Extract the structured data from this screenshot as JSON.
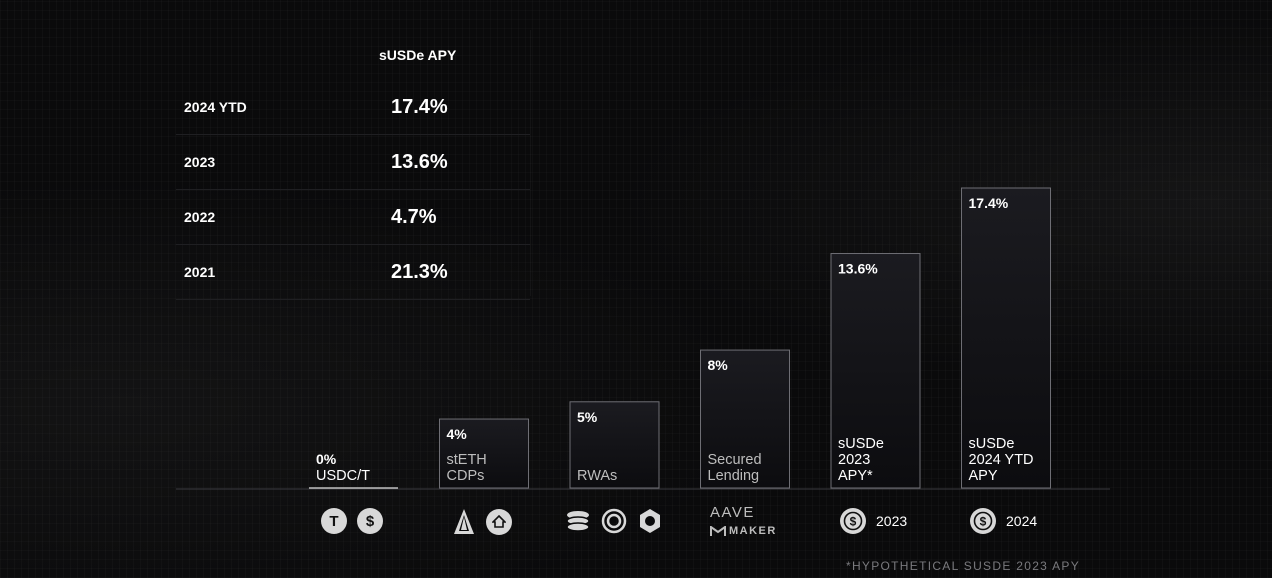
{
  "table": {
    "header": "sUSDe APY",
    "rows": [
      {
        "label": "2024 YTD",
        "value": "17.4%"
      },
      {
        "label": "2023",
        "value": "13.6%"
      },
      {
        "label": "2022",
        "value": "4.7%"
      },
      {
        "label": "2021",
        "value": "21.3%"
      }
    ]
  },
  "chart_data": {
    "type": "bar",
    "categories": [
      "USDC/T",
      "stETH CDPs",
      "RWAs",
      "Secured Lending",
      "sUSDe 2023 APY*",
      "sUSDe 2024 YTD APY"
    ],
    "category_lines": [
      [
        "USDC/T"
      ],
      [
        "stETH",
        "CDPs"
      ],
      [
        "RWAs"
      ],
      [
        "Secured",
        "Lending"
      ],
      [
        "sUSDe",
        "2023",
        "APY*"
      ],
      [
        "sUSDe",
        "2024 YTD",
        "APY"
      ]
    ],
    "values": [
      0,
      4,
      5,
      8,
      13.6,
      17.4
    ],
    "value_labels": [
      "0%",
      "4%",
      "5%",
      "8%",
      "13.6%",
      "17.4%"
    ],
    "highlight_labels": [
      true,
      false,
      false,
      false,
      true,
      true
    ],
    "ylim": [
      0,
      17.4
    ],
    "grid": false
  },
  "logos": {
    "year_2023": "2023",
    "year_2024": "2024",
    "aave": "AAVE",
    "maker": "MAKER"
  },
  "footnote": "*HYPOTHETICAL SUSDE 2023 APY",
  "colors": {
    "background": "#0a0a0b",
    "bar_stroke": "#6e6e74",
    "muted_label": "#bdbdbd",
    "coin": "#d8d8d8"
  }
}
